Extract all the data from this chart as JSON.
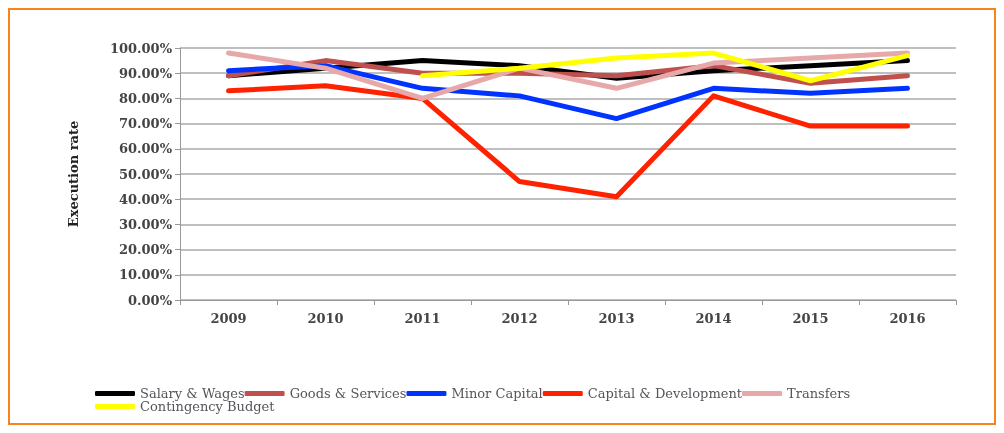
{
  "chart_data": {
    "type": "line",
    "ylabel": "Execution rate",
    "categories": [
      "2009",
      "2010",
      "2011",
      "2012",
      "2013",
      "2014",
      "2015",
      "2016"
    ],
    "series": [
      {
        "name": "Salary & Wages",
        "color": "#000000",
        "values": [
          89,
          92,
          95,
          93,
          88,
          91,
          93,
          95
        ]
      },
      {
        "name": "Goods & Services",
        "color": "#c0504d",
        "values": [
          89,
          95,
          90,
          90,
          89,
          93,
          86,
          89
        ]
      },
      {
        "name": "Minor Capital",
        "color": "#0033ff",
        "values": [
          91,
          93,
          84,
          81,
          72,
          84,
          82,
          84
        ]
      },
      {
        "name": "Capital & Development",
        "color": "#ff2200",
        "values": [
          83,
          85,
          80,
          47,
          41,
          81,
          69,
          69
        ]
      },
      {
        "name": "Transfers",
        "color": "#e6a8a8",
        "values": [
          98,
          92,
          80,
          92,
          84,
          94,
          96,
          98
        ]
      },
      {
        "name": "Contingency Budget",
        "color": "#ffff00",
        "values": [
          null,
          null,
          89,
          92,
          96,
          98,
          87,
          97
        ]
      }
    ],
    "ylim": [
      0,
      100
    ],
    "yticks": [
      {
        "value": 0,
        "label": "0.00%"
      },
      {
        "value": 10,
        "label": "10.00%"
      },
      {
        "value": 20,
        "label": "20.00%"
      },
      {
        "value": 30,
        "label": "30.00%"
      },
      {
        "value": 40,
        "label": "40.00%"
      },
      {
        "value": 50,
        "label": "50.00%"
      },
      {
        "value": 60,
        "label": "60.00%"
      },
      {
        "value": 70,
        "label": "70.00%"
      },
      {
        "value": 80,
        "label": "80.00%"
      },
      {
        "value": 90,
        "label": "90.00%"
      },
      {
        "value": 100,
        "label": "100.00%"
      }
    ],
    "grid": "y",
    "legend": "bottom",
    "marker": "none",
    "line_style": "solid"
  }
}
